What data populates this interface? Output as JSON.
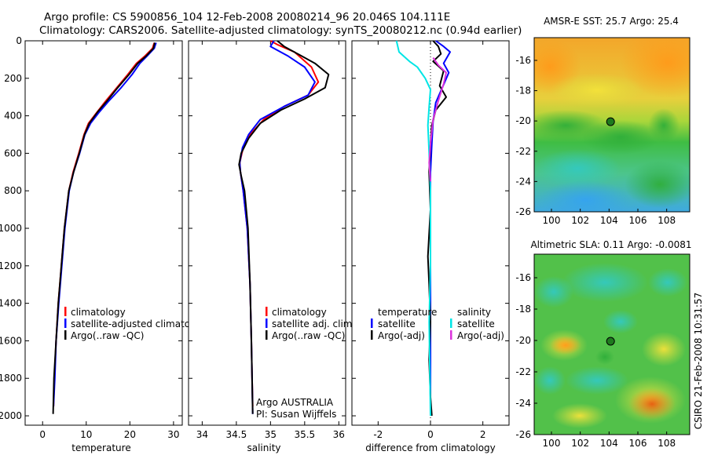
{
  "header": {
    "title_line1": "Argo profile: CS 5900856_104 12-Feb-2008 20080214_96 20.046S 104.111E",
    "title_line2": "Climatology: CARS2006. Satellite-adjusted climatology: synTS_20080212.nc (0.94d earlier)"
  },
  "footer": {
    "credit": "CSIRO 21-Feb-2008 10:31:57",
    "argo_label": "Argo AUSTRALIA",
    "pi_label": "PI: Susan Wijffels"
  },
  "colors": {
    "climatology": "#ff0000",
    "satellite": "#0000ff",
    "argo": "#000000",
    "salinity_satellite": "#00e5e5",
    "salinity_argo": "#dd33dd",
    "marker": "#1e7a1e"
  },
  "chart_data": [
    {
      "id": "temperature",
      "type": "line",
      "xlabel": "temperature",
      "ylabel": "",
      "xlim": [
        -4,
        32
      ],
      "ylim": [
        2050,
        0
      ],
      "xticks": [
        0,
        10,
        20,
        30
      ],
      "yticks": [
        0,
        200,
        400,
        600,
        800,
        1000,
        1200,
        1400,
        1600,
        1800,
        2000
      ],
      "legend": [
        "climatology",
        "satellite-adjusted climatology",
        "Argo(..raw -QC)"
      ],
      "series": [
        {
          "name": "climatology",
          "color": "#ff0000",
          "points": [
            [
              25.6,
              10
            ],
            [
              25.2,
              40
            ],
            [
              23.5,
              80
            ],
            [
              21.5,
              120
            ],
            [
              19.5,
              180
            ],
            [
              17,
              250
            ],
            [
              14.5,
              320
            ],
            [
              12.5,
              380
            ],
            [
              10.5,
              440
            ],
            [
              9.5,
              500
            ],
            [
              8.3,
              600
            ],
            [
              7,
              700
            ],
            [
              6,
              800
            ],
            [
              5,
              1000
            ],
            [
              4.3,
              1200
            ],
            [
              3.6,
              1400
            ],
            [
              3.1,
              1600
            ],
            [
              2.7,
              1800
            ],
            [
              2.5,
              1950
            ]
          ]
        },
        {
          "name": "satellite-adjusted climatology",
          "color": "#0000ff",
          "points": [
            [
              26,
              10
            ],
            [
              25.6,
              40
            ],
            [
              24,
              80
            ],
            [
              22.3,
              120
            ],
            [
              20.5,
              180
            ],
            [
              18,
              250
            ],
            [
              15.2,
              320
            ],
            [
              13,
              380
            ],
            [
              11,
              440
            ],
            [
              9.7,
              500
            ],
            [
              8.5,
              600
            ],
            [
              7.1,
              700
            ],
            [
              6.1,
              800
            ],
            [
              5.1,
              1000
            ],
            [
              4.4,
              1200
            ],
            [
              3.7,
              1400
            ],
            [
              3.1,
              1600
            ],
            [
              2.8,
              1800
            ],
            [
              2.5,
              1950
            ]
          ]
        },
        {
          "name": "Argo(..raw -QC)",
          "color": "#000000",
          "points": [
            [
              25.7,
              10
            ],
            [
              25.4,
              40
            ],
            [
              23.8,
              80
            ],
            [
              21.8,
              120
            ],
            [
              19.8,
              180
            ],
            [
              17.2,
              250
            ],
            [
              14.8,
              320
            ],
            [
              12.6,
              380
            ],
            [
              10.7,
              440
            ],
            [
              9.6,
              500
            ],
            [
              8.4,
              600
            ],
            [
              7.1,
              700
            ],
            [
              6,
              800
            ],
            [
              5,
              1000
            ],
            [
              4.3,
              1200
            ],
            [
              3.6,
              1400
            ],
            [
              3.1,
              1600
            ],
            [
              2.6,
              1800
            ],
            [
              2.4,
              1990
            ]
          ]
        }
      ]
    },
    {
      "id": "salinity",
      "type": "line",
      "xlabel": "salinity",
      "ylabel": "",
      "xlim": [
        33.8,
        36.1
      ],
      "ylim": [
        2050,
        0
      ],
      "xticks": [
        34,
        34.5,
        35,
        35.5,
        36
      ],
      "xticklabels": [
        "34",
        "34.5",
        "35",
        "35.5",
        "36"
      ],
      "legend": [
        "climatology",
        "satellite adj. clim.",
        "Argo(..raw -QC)"
      ],
      "series": [
        {
          "name": "climatology",
          "color": "#ff0000",
          "points": [
            [
              35,
              0
            ],
            [
              35.1,
              20
            ],
            [
              35.35,
              60
            ],
            [
              35.6,
              140
            ],
            [
              35.7,
              220
            ],
            [
              35.55,
              290
            ],
            [
              35.2,
              350
            ],
            [
              34.9,
              420
            ],
            [
              34.7,
              500
            ],
            [
              34.6,
              570
            ],
            [
              34.55,
              650
            ],
            [
              34.56,
              700
            ],
            [
              34.6,
              800
            ],
            [
              34.66,
              1000
            ],
            [
              34.7,
              1300
            ],
            [
              34.72,
              1600
            ],
            [
              34.73,
              1800
            ],
            [
              34.74,
              1950
            ]
          ]
        },
        {
          "name": "satellite adj. clim.",
          "color": "#0000ff",
          "points": [
            [
              35.05,
              0
            ],
            [
              35,
              30
            ],
            [
              35.25,
              80
            ],
            [
              35.5,
              140
            ],
            [
              35.65,
              220
            ],
            [
              35.55,
              290
            ],
            [
              35.2,
              350
            ],
            [
              34.85,
              420
            ],
            [
              34.68,
              500
            ],
            [
              34.59,
              570
            ],
            [
              34.55,
              650
            ],
            [
              34.56,
              700
            ],
            [
              34.6,
              800
            ],
            [
              34.66,
              1000
            ],
            [
              34.7,
              1300
            ],
            [
              34.72,
              1600
            ],
            [
              34.73,
              1800
            ],
            [
              34.74,
              1990
            ]
          ]
        },
        {
          "name": "Argo(..raw -QC)",
          "color": "#000000",
          "points": [
            [
              35.1,
              0
            ],
            [
              35.2,
              30
            ],
            [
              35.4,
              70
            ],
            [
              35.65,
              120
            ],
            [
              35.85,
              180
            ],
            [
              35.8,
              250
            ],
            [
              35.5,
              310
            ],
            [
              35.15,
              370
            ],
            [
              34.85,
              440
            ],
            [
              34.68,
              520
            ],
            [
              34.57,
              600
            ],
            [
              34.54,
              660
            ],
            [
              34.57,
              720
            ],
            [
              34.62,
              800
            ],
            [
              34.67,
              1000
            ],
            [
              34.7,
              1300
            ],
            [
              34.72,
              1600
            ],
            [
              34.73,
              1800
            ],
            [
              34.74,
              1990
            ]
          ]
        }
      ]
    },
    {
      "id": "difference",
      "type": "line",
      "xlabel": "difference from climatology",
      "ylabel": "",
      "xlim": [
        -3,
        3
      ],
      "ylim": [
        2050,
        0
      ],
      "xticks": [
        -2,
        0,
        2
      ],
      "legend_temperature": [
        "temperature",
        "satellite",
        "Argo(-adj)"
      ],
      "legend_salinity": [
        "salinity",
        "satellite",
        "Argo(-adj)"
      ],
      "series": [
        {
          "name": "temperature satellite",
          "color": "#0000ff",
          "points": [
            [
              0.2,
              0
            ],
            [
              0.5,
              30
            ],
            [
              0.75,
              60
            ],
            [
              0.5,
              120
            ],
            [
              0.7,
              170
            ],
            [
              0.45,
              250
            ],
            [
              0.2,
              330
            ],
            [
              0.1,
              430
            ],
            [
              0.05,
              550
            ],
            [
              0,
              700
            ],
            [
              0,
              1000
            ],
            [
              0,
              1500
            ],
            [
              0,
              2000
            ]
          ]
        },
        {
          "name": "temperature Argo(-adj)",
          "color": "#000000",
          "points": [
            [
              0.1,
              0
            ],
            [
              0.3,
              30
            ],
            [
              0.4,
              70
            ],
            [
              0.1,
              110
            ],
            [
              0.5,
              160
            ],
            [
              0.35,
              240
            ],
            [
              0.6,
              300
            ],
            [
              0.2,
              370
            ],
            [
              0.05,
              450
            ],
            [
              0,
              550
            ],
            [
              -0.05,
              700
            ],
            [
              0,
              900
            ],
            [
              -0.1,
              1150
            ],
            [
              -0.05,
              1300
            ],
            [
              0,
              1500
            ],
            [
              -0.05,
              1700
            ],
            [
              0,
              1900
            ],
            [
              0.05,
              2000
            ]
          ]
        },
        {
          "name": "salinity satellite",
          "color": "#00e5e5",
          "points": [
            [
              -1.3,
              0
            ],
            [
              -1.2,
              60
            ],
            [
              -0.8,
              110
            ],
            [
              -0.5,
              140
            ],
            [
              -0.2,
              200
            ],
            [
              0,
              260
            ],
            [
              -0.05,
              350
            ],
            [
              -0.1,
              450
            ],
            [
              -0.05,
              600
            ],
            [
              0,
              800
            ],
            [
              0,
              1200
            ],
            [
              -0.05,
              1500
            ],
            [
              0,
              2000
            ]
          ]
        },
        {
          "name": "salinity Argo(-adj)",
          "color": "#dd33dd",
          "points": [
            [
              0.1,
              90
            ],
            [
              0.3,
              130
            ],
            [
              0.6,
              170
            ],
            [
              0.5,
              230
            ],
            [
              0.3,
              320
            ],
            [
              0.1,
              420
            ],
            [
              0,
              550
            ],
            [
              -0.05,
              650
            ],
            [
              0,
              750
            ]
          ]
        }
      ]
    }
  ],
  "maps": [
    {
      "id": "sst-map",
      "title": "AMSR-E SST: 25.7 Argo: 25.4",
      "xticks": [
        100,
        102,
        104,
        106,
        108
      ],
      "yticks": [
        -16,
        -18,
        -20,
        -22,
        -24,
        -26
      ],
      "xlim": [
        98.8,
        109.6
      ],
      "ylim": [
        -26,
        -14.5
      ],
      "marker": {
        "lon": 104.1,
        "lat": -20.05
      }
    },
    {
      "id": "sla-map",
      "title": "Altimetric SLA: 0.11 Argo: -0.0081",
      "xticks": [
        100,
        102,
        104,
        106,
        108
      ],
      "yticks": [
        -16,
        -18,
        -20,
        -22,
        -24,
        -26
      ],
      "xlim": [
        98.8,
        109.6
      ],
      "ylim": [
        -26,
        -14.5
      ],
      "marker": {
        "lon": 104.1,
        "lat": -20.05
      }
    }
  ]
}
